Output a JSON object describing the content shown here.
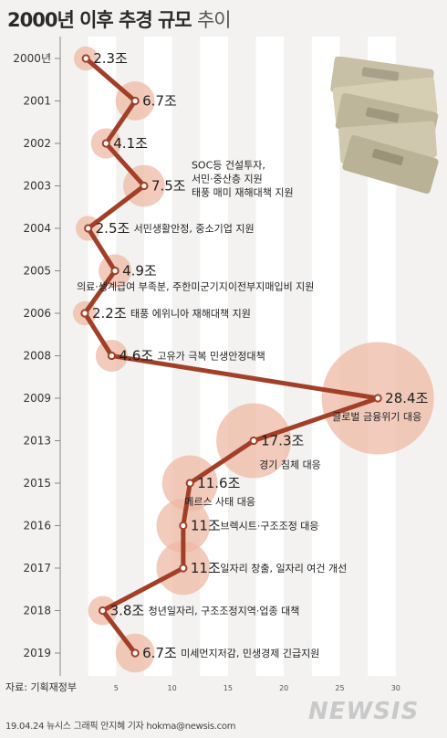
{
  "title_main": "2000년 이후 추경 규모",
  "title_sub": "추이",
  "source": "자료: 기획재정부",
  "credit": "19.04.24 뉴시스 그래픽 안지혜 기자 hokma@newsis.com",
  "logo_text": "NEWSIS",
  "colors": {
    "line": "#a13f28",
    "bubble": "#eeb7a2",
    "background": "#f3f2f0",
    "gridband": "#ffffff"
  },
  "chart_data": {
    "type": "line",
    "title": "2000년 이후 추경 규모 추이",
    "unit": "조",
    "xlim": [
      0,
      30
    ],
    "xticks": [
      5,
      10,
      15,
      20,
      25,
      30
    ],
    "grid": true,
    "points": [
      {
        "year": "2000년",
        "value": 2.3,
        "label": "2.3조",
        "note": ""
      },
      {
        "year": "2001",
        "value": 6.7,
        "label": "6.7조",
        "note": ""
      },
      {
        "year": "2002",
        "value": 4.1,
        "label": "4.1조",
        "note": ""
      },
      {
        "year": "2003",
        "value": 7.5,
        "label": "7.5조",
        "note": "SOC등 건설투자,\n서민·중산층 지원\n태풍 매미 재해대책 지원"
      },
      {
        "year": "2004",
        "value": 2.5,
        "label": "2.5조",
        "note": "서민생활안정, 중소기업 지원"
      },
      {
        "year": "2005",
        "value": 4.9,
        "label": "4.9조",
        "note": "의료·생계급여 부족분, 주한미군기지이전부지매입비 지원"
      },
      {
        "year": "2006",
        "value": 2.2,
        "label": "2.2조",
        "note": "태풍 에위니아 재해대책 지원"
      },
      {
        "year": "2008",
        "value": 4.6,
        "label": "4.6조",
        "note": "고유가 극복 민생안정대책"
      },
      {
        "year": "2009",
        "value": 28.4,
        "label": "28.4조",
        "note": "글로벌 금융위기 대응"
      },
      {
        "year": "2013",
        "value": 17.3,
        "label": "17.3조",
        "note": "경기 침체 대응"
      },
      {
        "year": "2015",
        "value": 11.6,
        "label": "11.6조",
        "note": "메르스 사태 대응"
      },
      {
        "year": "2016",
        "value": 11,
        "label": "11조",
        "note": "브렉시트·구조조정 대응"
      },
      {
        "year": "2017",
        "value": 11,
        "label": "11조",
        "note": "일자리 창출, 일자리 여건 개선"
      },
      {
        "year": "2018",
        "value": 3.8,
        "label": "3.8조",
        "note": "청년일자리, 구조조정지역·업종 대책"
      },
      {
        "year": "2019",
        "value": 6.7,
        "label": "6.7조",
        "note": "미세먼지저감, 민생경제 긴급지원"
      }
    ]
  }
}
